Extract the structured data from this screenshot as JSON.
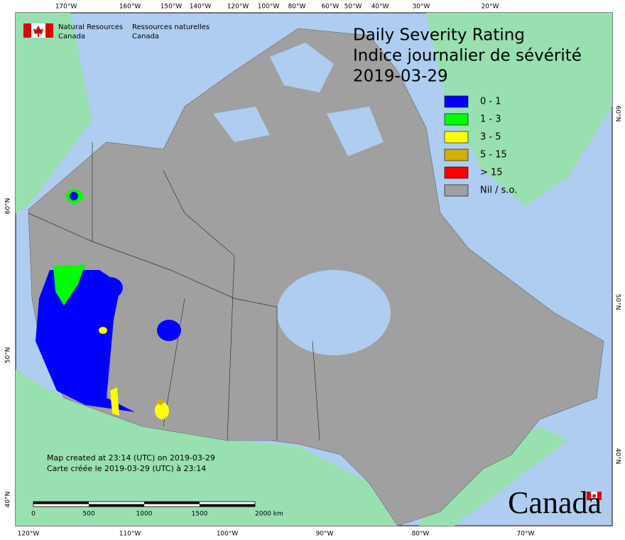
{
  "header": {
    "agency_en": [
      "Natural Resources",
      "Canada"
    ],
    "agency_fr": [
      "Ressources naturelles",
      "Canada"
    ]
  },
  "title": [
    "Daily Severity Rating",
    "Indice journalier de sévérité",
    "2019-03-29"
  ],
  "legend": [
    {
      "label": "0 - 1",
      "color": "#0000ff"
    },
    {
      "label": "1 - 3",
      "color": "#00ff00"
    },
    {
      "label": "3 - 5",
      "color": "#ffff00"
    },
    {
      "label": "5 - 15",
      "color": "#d4b000"
    },
    {
      "label": "> 15",
      "color": "#ff0000"
    },
    {
      "label": "Nil / s.o.",
      "color": "#a0a0a0"
    }
  ],
  "graticule": {
    "top": [
      "170°W",
      "160°W",
      "150°W",
      "140°W",
      "120°W",
      "100°W",
      "80°W",
      "60°W",
      "50°W",
      "40°W",
      "30°W",
      "20°W"
    ],
    "bottom": [
      "120°W",
      "110°W",
      "100°W",
      "90°W",
      "80°W",
      "70°W"
    ],
    "left": [
      "60°N",
      "50°N",
      "40°N"
    ],
    "right": [
      "60°N",
      "50°N",
      "40°N"
    ]
  },
  "footer": {
    "created": [
      "Map created at 23:14 (UTC) on 2019-03-29",
      "Carte créée le 2019-03-29 (UTC) à 23:14"
    ],
    "scale": [
      "0",
      "500",
      "1000",
      "1500",
      "2000 km"
    ],
    "wordmark": "Canada"
  }
}
